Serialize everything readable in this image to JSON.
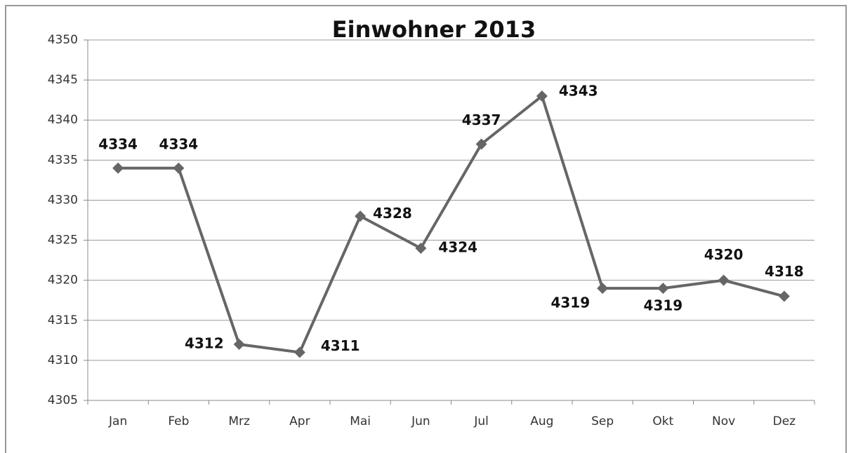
{
  "chart_data": {
    "type": "line",
    "title": "Einwohner 2013",
    "categories": [
      "Jan",
      "Feb",
      "Mrz",
      "Apr",
      "Mai",
      "Jun",
      "Jul",
      "Aug",
      "Sep",
      "Okt",
      "Nov",
      "Dez"
    ],
    "values": [
      4334,
      4334,
      4312,
      4311,
      4328,
      4324,
      4337,
      4343,
      4319,
      4319,
      4320,
      4318
    ],
    "color": "#666666",
    "ylim": [
      4305,
      4350
    ],
    "yticks": [
      4305,
      4310,
      4315,
      4320,
      4325,
      4330,
      4335,
      4340,
      4345,
      4350
    ],
    "grid": true
  }
}
